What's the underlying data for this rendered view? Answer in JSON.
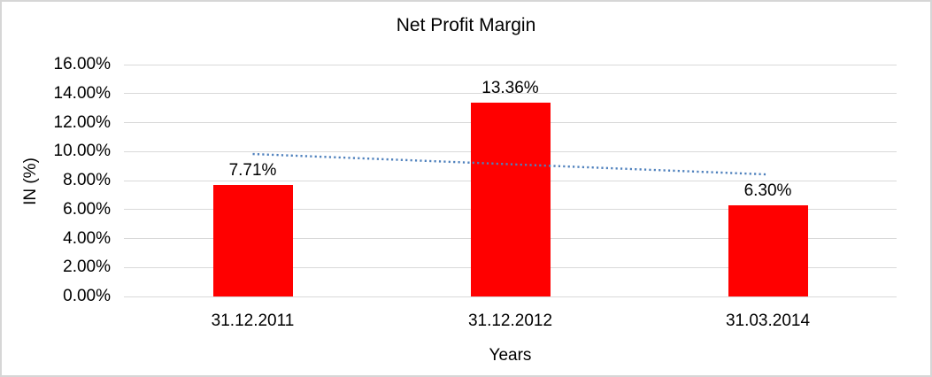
{
  "frame": {
    "background": "#FFFFFF",
    "border_color": "#D6D6D6"
  },
  "chart_data": {
    "type": "bar",
    "title": "Net Profit Margin",
    "xlabel": "Years",
    "ylabel": "IN (%)",
    "categories": [
      "31.12.2011",
      "31.12.2012",
      "31.03.2014"
    ],
    "values": [
      7.71,
      13.36,
      6.3
    ],
    "data_labels": [
      "7.71%",
      "13.36%",
      "6.30%"
    ],
    "bar_color": "#FF0000",
    "ylim": [
      0,
      16
    ],
    "yticks": [
      {
        "value": 0,
        "label": "0.00%"
      },
      {
        "value": 2,
        "label": "2.00%"
      },
      {
        "value": 4,
        "label": "4.00%"
      },
      {
        "value": 6,
        "label": "6.00%"
      },
      {
        "value": 8,
        "label": "8.00%"
      },
      {
        "value": 10,
        "label": "10.00%"
      },
      {
        "value": 12,
        "label": "12.00%"
      },
      {
        "value": 14,
        "label": "14.00%"
      },
      {
        "value": 16,
        "label": "16.00%"
      }
    ],
    "grid": true,
    "gridline_color": "#D9D9D9",
    "legend_position": "none",
    "trendline": {
      "type": "linear",
      "style": "dotted",
      "color": "#4F81BD",
      "start_value": 9.83,
      "end_value": 8.42
    }
  }
}
